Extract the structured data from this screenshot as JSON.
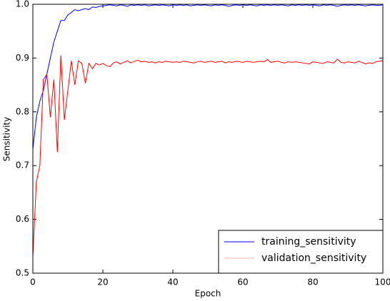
{
  "chart_data": {
    "type": "line",
    "xlabel": "Epoch",
    "ylabel": "Sensitivity",
    "x": [
      0,
      1,
      2,
      3,
      4,
      5,
      6,
      7,
      8,
      9,
      10,
      11,
      12,
      13,
      14,
      15,
      16,
      17,
      18,
      19,
      20,
      21,
      22,
      23,
      24,
      25,
      26,
      27,
      28,
      29,
      30,
      31,
      32,
      33,
      34,
      35,
      36,
      37,
      38,
      39,
      40,
      41,
      42,
      43,
      44,
      45,
      46,
      47,
      48,
      49,
      50,
      51,
      52,
      53,
      54,
      55,
      56,
      57,
      58,
      59,
      60,
      61,
      62,
      63,
      64,
      65,
      66,
      67,
      68,
      69,
      70,
      71,
      72,
      73,
      74,
      75,
      76,
      77,
      78,
      79,
      80,
      81,
      82,
      83,
      84,
      85,
      86,
      87,
      88,
      89,
      90,
      91,
      92,
      93,
      94,
      95,
      96,
      97,
      98,
      99,
      100
    ],
    "series": [
      {
        "name": "training_sensitivity",
        "color": "#0000ff",
        "values": [
          0.73,
          0.79,
          0.82,
          0.84,
          0.87,
          0.9,
          0.93,
          0.95,
          0.97,
          0.97,
          0.98,
          0.985,
          0.99,
          0.988,
          0.99,
          0.992,
          0.99,
          0.995,
          0.994,
          0.996,
          0.997,
          0.998,
          0.999,
          0.998,
          0.997,
          0.999,
          0.998,
          0.996,
          0.999,
          0.998,
          0.999,
          0.998,
          0.999,
          0.997,
          0.998,
          0.999,
          0.998,
          0.999,
          0.998,
          0.997,
          0.999,
          0.998,
          0.999,
          0.998,
          0.999,
          0.997,
          0.998,
          0.999,
          0.998,
          0.999,
          0.998,
          0.997,
          0.999,
          0.998,
          0.999,
          0.998,
          0.996,
          0.998,
          0.999,
          0.998,
          0.999,
          0.998,
          0.999,
          0.998,
          0.997,
          0.999,
          0.998,
          0.999,
          0.998,
          0.999,
          0.998,
          0.999,
          0.998,
          0.997,
          0.999,
          0.998,
          0.999,
          0.998,
          0.999,
          0.998,
          0.999,
          0.998,
          0.997,
          0.999,
          0.998,
          0.999,
          0.998,
          0.996,
          0.998,
          0.999,
          0.998,
          0.999,
          0.998,
          0.999,
          0.998,
          0.997,
          0.998,
          0.999,
          0.998,
          0.998,
          0.999
        ]
      },
      {
        "name": "validation_sensitivity",
        "color": "#ff0000",
        "values": [
          0.53,
          0.67,
          0.7,
          0.86,
          0.87,
          0.79,
          0.86,
          0.725,
          0.905,
          0.785,
          0.84,
          0.895,
          0.85,
          0.895,
          0.89,
          0.853,
          0.89,
          0.88,
          0.89,
          0.887,
          0.89,
          0.886,
          0.884,
          0.891,
          0.893,
          0.889,
          0.892,
          0.895,
          0.891,
          0.894,
          0.896,
          0.893,
          0.894,
          0.892,
          0.893,
          0.891,
          0.893,
          0.892,
          0.894,
          0.893,
          0.892,
          0.893,
          0.892,
          0.894,
          0.893,
          0.892,
          0.891,
          0.893,
          0.894,
          0.892,
          0.893,
          0.894,
          0.892,
          0.893,
          0.894,
          0.891,
          0.893,
          0.892,
          0.894,
          0.893,
          0.892,
          0.894,
          0.893,
          0.892,
          0.893,
          0.894,
          0.893,
          0.897,
          0.892,
          0.893,
          0.894,
          0.892,
          0.891,
          0.893,
          0.892,
          0.893,
          0.892,
          0.891,
          0.89,
          0.889,
          0.893,
          0.892,
          0.891,
          0.89,
          0.893,
          0.892,
          0.891,
          0.898,
          0.892,
          0.891,
          0.893,
          0.892,
          0.891,
          0.894,
          0.892,
          0.889,
          0.891,
          0.89,
          0.893,
          0.894,
          0.895
        ]
      }
    ],
    "xlim": [
      0,
      100
    ],
    "xticks": [
      0,
      20,
      40,
      60,
      80,
      100
    ],
    "ylim": [
      0.5,
      1
    ],
    "yticks": [
      0.5,
      0.6,
      0.7,
      0.8,
      0.9,
      {
        "value": 1,
        "label": "1.0"
      }
    ],
    "grid": false,
    "legend": "lower right"
  }
}
